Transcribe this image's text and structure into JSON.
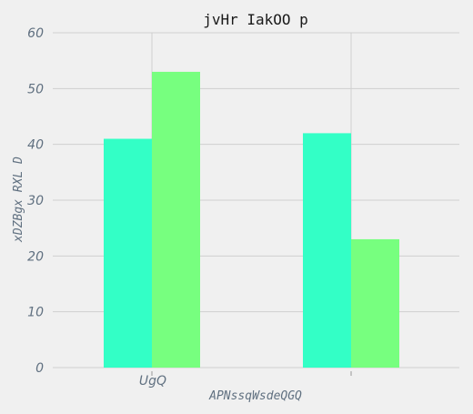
{
  "chart_data": {
    "type": "bar",
    "title": "jvHr IakOO p",
    "xlabel": "APNssqWsdeQGQ",
    "ylabel": "xDZBgx RXL D",
    "categories": [
      "UgQ",
      ""
    ],
    "series": [
      {
        "values": [
          41,
          42
        ],
        "color": "#33ffc6"
      },
      {
        "values": [
          53,
          23
        ],
        "color": "#77ff7f"
      }
    ],
    "ylim": [
      0,
      60
    ],
    "yticks": [
      0,
      10,
      20,
      30,
      40,
      50,
      60
    ],
    "grid": true,
    "legend": "none"
  }
}
